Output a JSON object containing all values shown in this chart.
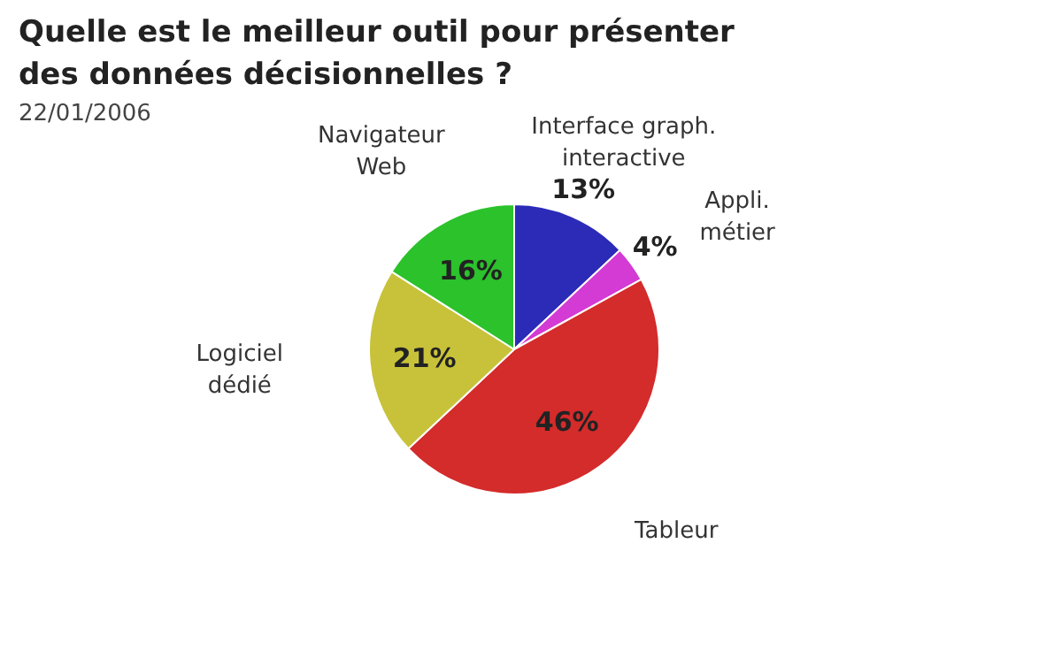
{
  "chart_data": {
    "type": "pie",
    "title": "Quelle est le meilleur outil pour présenter des données décisionnelles ?",
    "subtitle": "22/01/2006",
    "categories": [
      "Interface graph.\ninteractive",
      "Appli.\nmétier",
      "Tableur",
      "Logiciel\ndédié",
      "Navigateur\nWeb"
    ],
    "values": [
      13,
      4,
      46,
      21,
      16
    ],
    "colors": [
      "#2b2bb8",
      "#d43ad4",
      "#d42b2b",
      "#c8c23a",
      "#2bc22b"
    ],
    "value_labels": [
      "13%",
      "4%",
      "46%",
      "21%",
      "16%"
    ]
  }
}
